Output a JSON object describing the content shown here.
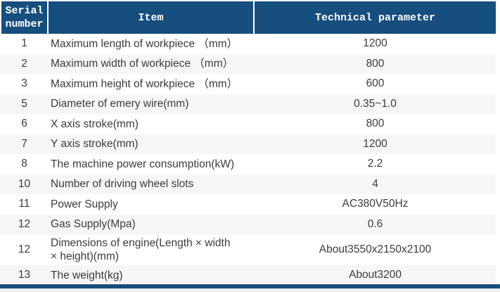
{
  "colors": {
    "header_bg": "#164e7d",
    "header_text": "#ffffff",
    "row_alt_bg": "#f6f6f7",
    "row_bg": "#ffffff",
    "body_text": "#3c3c3c",
    "bottom_bar": "#164e7d"
  },
  "table": {
    "header": {
      "serial": "Serial number",
      "item": "Item",
      "param": "Technical parameter"
    },
    "rows": [
      {
        "serial": "1",
        "item": "Maximum length of workpiece （mm）",
        "param": "1200"
      },
      {
        "serial": "2",
        "item": "Maximum width of workpiece （mm）",
        "param": "800"
      },
      {
        "serial": "3",
        "item": "Maximum height of workpiece （mm）",
        "param": "600"
      },
      {
        "serial": "5",
        "item": "Diameter of emery wire(mm)",
        "param": "0.35~1.0"
      },
      {
        "serial": "6",
        "item": "X axis stroke(mm)",
        "param": "800"
      },
      {
        "serial": "7",
        "item": "Y axis stroke(mm)",
        "param": "1200"
      },
      {
        "serial": "8",
        "item": "The machine power consumption(kW)",
        "param": "2.2"
      },
      {
        "serial": "10",
        "item": "Number of driving wheel slots",
        "param": "4"
      },
      {
        "serial": "11",
        "item": "Power Supply",
        "param": "AC380V50Hz"
      },
      {
        "serial": "12",
        "item": "Gas Supply(Mpa)",
        "param": "0.6"
      },
      {
        "serial": "12",
        "item": "Dimensions of engine(Length × width\n× height)(mm)",
        "param": "About3550x2150x2100"
      },
      {
        "serial": "13",
        "item": "The weight(kg)",
        "param": "About3200"
      }
    ]
  }
}
